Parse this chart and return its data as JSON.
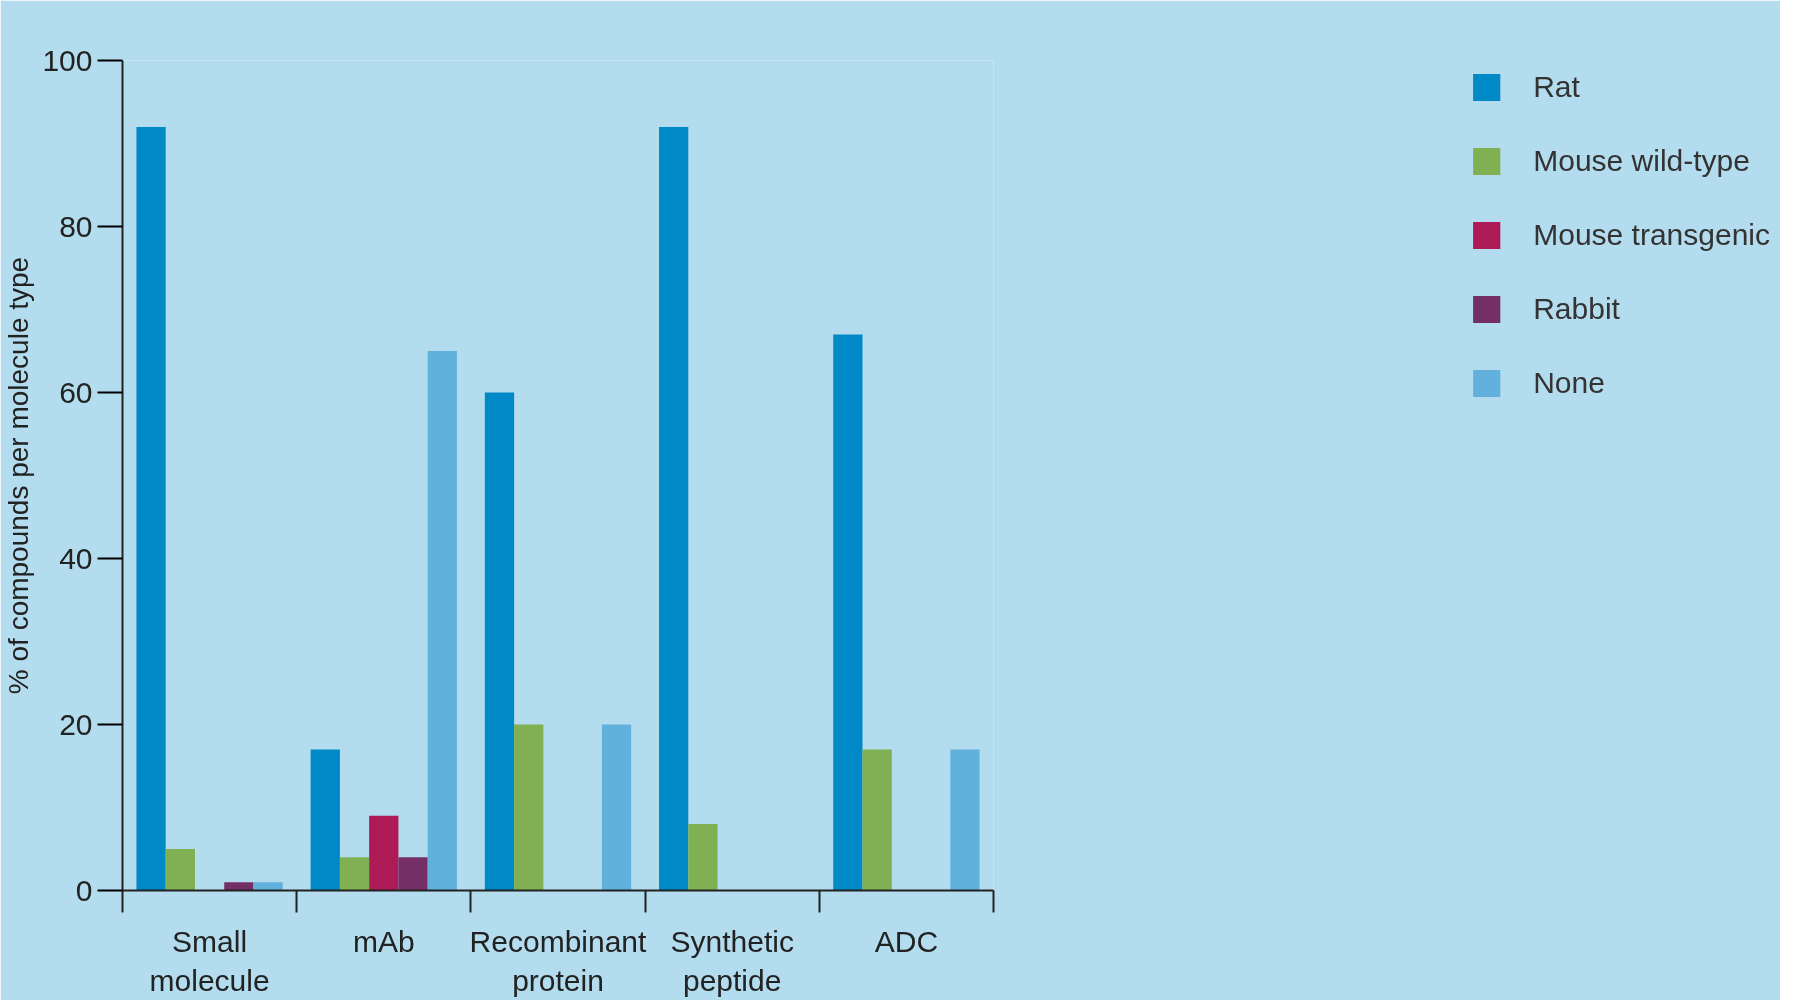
{
  "chart_data": {
    "type": "bar",
    "ylabel": "% of compounds per molecule type",
    "categories": [
      "Small molecule",
      "mAb",
      "Recombinant protein",
      "Synthetic peptide",
      "ADC"
    ],
    "series": [
      {
        "name": "Rat",
        "color": "#0089c7",
        "values": [
          92,
          17,
          60,
          92,
          67
        ]
      },
      {
        "name": "Mouse wild-type",
        "color": "#80b051",
        "values": [
          5,
          4,
          20,
          8,
          17
        ]
      },
      {
        "name": "Mouse transgenic",
        "color": "#ad1a55",
        "values": [
          0,
          9,
          0,
          0,
          0
        ]
      },
      {
        "name": "Rabbit",
        "color": "#732f66",
        "values": [
          1,
          4,
          0,
          0,
          0
        ]
      },
      {
        "name": "None",
        "color": "#62b1dd",
        "values": [
          1,
          65,
          20,
          0,
          17
        ]
      }
    ],
    "ylim": [
      0,
      100
    ],
    "yticks": [
      0,
      20,
      40,
      60,
      80,
      100
    ],
    "grid": false,
    "legend": "top right"
  }
}
